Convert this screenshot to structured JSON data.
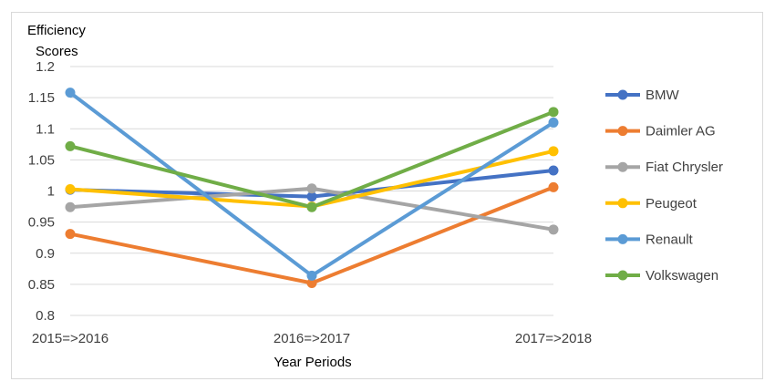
{
  "chart_data": {
    "type": "line",
    "title": "",
    "xlabel": "Year Periods",
    "ylabel_lines": [
      "Efficiency",
      "Scores"
    ],
    "categories": [
      "2015=>2016",
      "2016=>2017",
      "2017=>2018"
    ],
    "ylim": [
      0.8,
      1.2
    ],
    "yticks": [
      "0.8",
      "0.85",
      "0.9",
      "0.95",
      "1",
      "1.05",
      "1.1",
      "1.15",
      "1.2"
    ],
    "grid": "horizontal",
    "legend_position": "right",
    "series": [
      {
        "name": "BMW",
        "color": "#4472c4",
        "values": [
          1.002,
          0.991,
          1.033
        ]
      },
      {
        "name": "Daimler AG",
        "color": "#ed7d31",
        "values": [
          0.931,
          0.852,
          1.006
        ]
      },
      {
        "name": "Fiat Chrysler",
        "color": "#a5a5a5",
        "values": [
          0.974,
          1.004,
          0.938
        ]
      },
      {
        "name": "Peugeot",
        "color": "#ffc000",
        "values": [
          1.003,
          0.975,
          1.064
        ]
      },
      {
        "name": "Renault",
        "color": "#5b9bd5",
        "values": [
          1.158,
          0.864,
          1.11
        ]
      },
      {
        "name": "Volkswagen",
        "color": "#70ad47",
        "values": [
          1.072,
          0.974,
          1.127
        ]
      }
    ]
  }
}
